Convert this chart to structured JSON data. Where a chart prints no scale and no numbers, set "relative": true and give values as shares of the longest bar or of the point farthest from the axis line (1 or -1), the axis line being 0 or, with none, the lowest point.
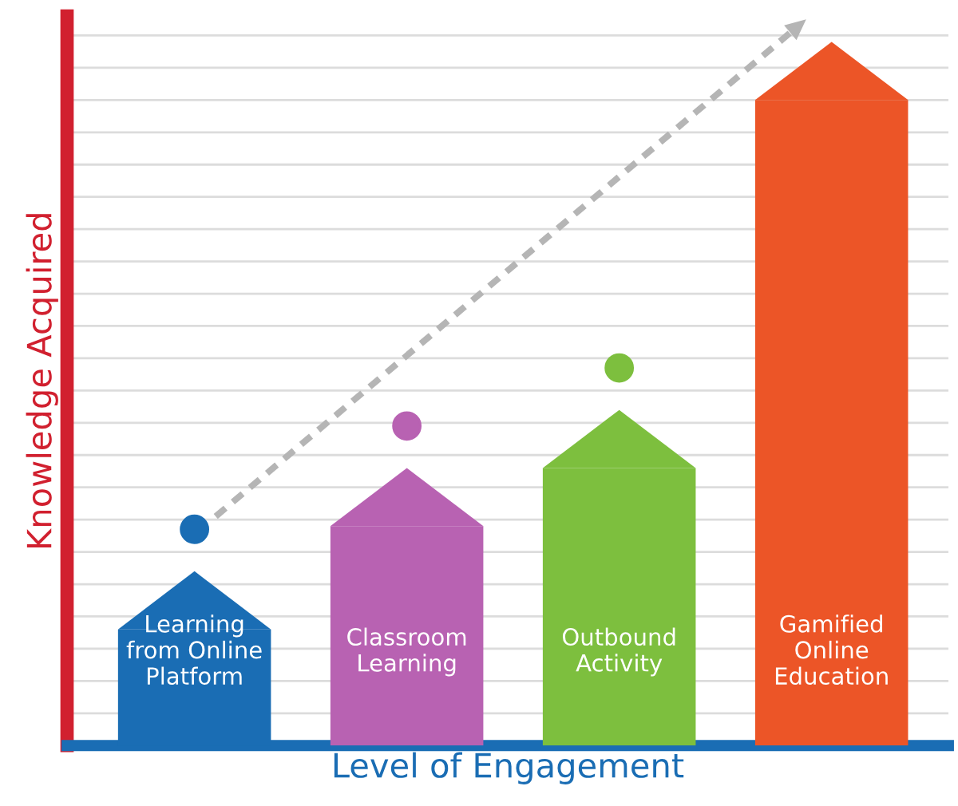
{
  "chart_data": {
    "type": "bar",
    "relative": true,
    "xlabel": "Level of Engagement",
    "ylabel": "Knowledge Acquired",
    "categories": [
      "Learning\nfrom Online\nPlatform",
      "Classroom\nLearning",
      "Outbound\nActivity",
      "Gamified\nOnline\nEducation"
    ],
    "values": [
      0.18,
      0.34,
      0.43,
      1
    ],
    "colors": [
      "#1a6db4",
      "#b862b2",
      "#7dbf3e",
      "#ec5527"
    ],
    "grid": "y"
  }
}
